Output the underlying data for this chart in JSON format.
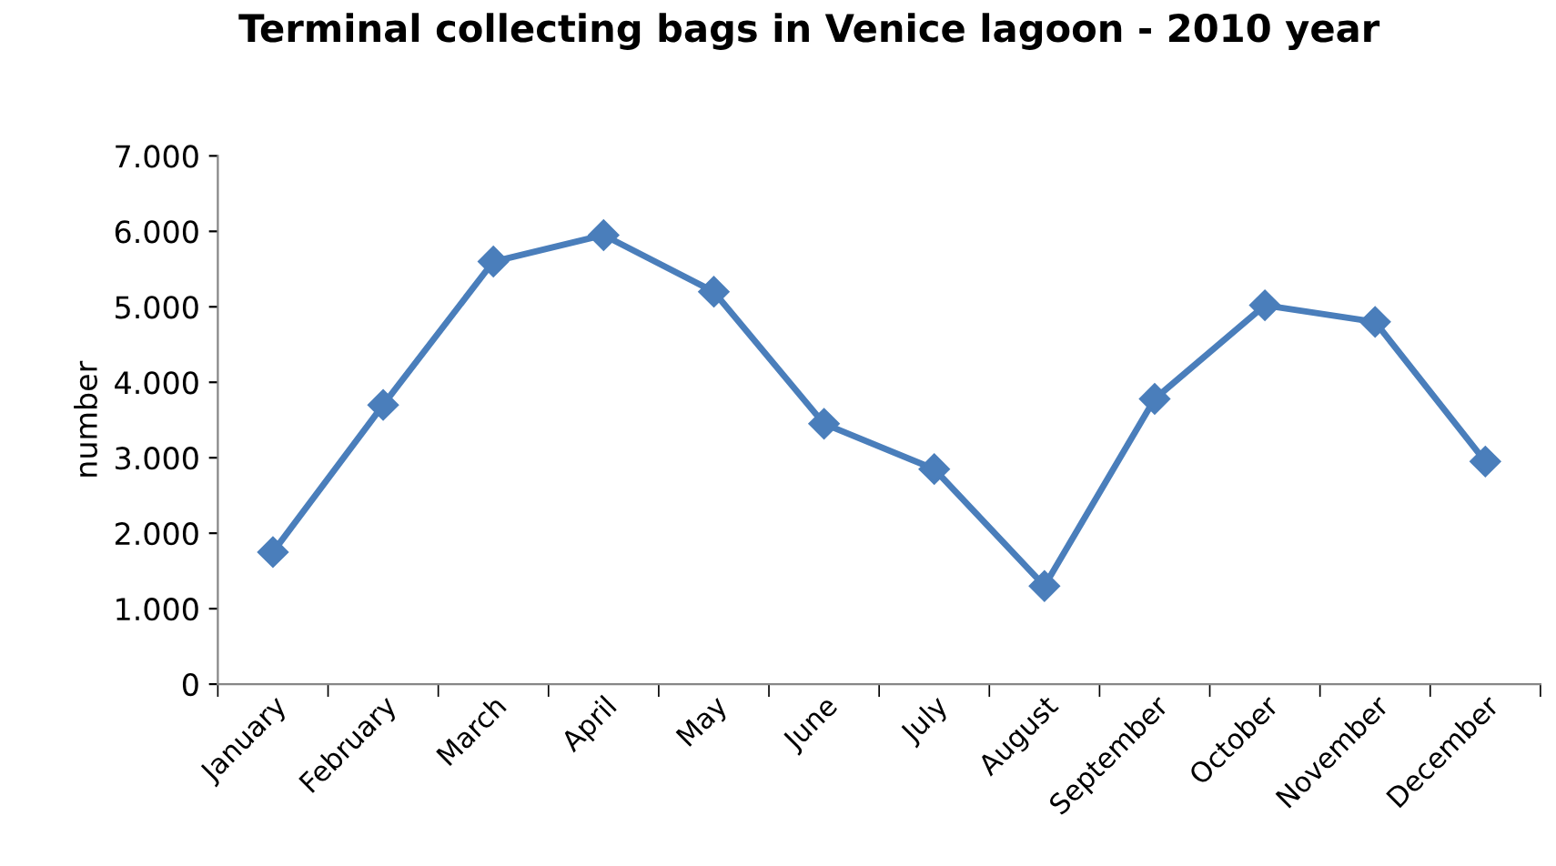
{
  "chart_data": {
    "type": "line",
    "title": "Terminal collecting bags in Venice lagoon - 2010 year",
    "ylabel": "number",
    "categories": [
      "January",
      "February",
      "March",
      "April",
      "May",
      "June",
      "July",
      "August",
      "September",
      "October",
      "November",
      "December"
    ],
    "series": [
      {
        "color": "#4a7ebb",
        "values": [
          1750,
          3700,
          5600,
          5950,
          5200,
          3450,
          2850,
          1300,
          3780,
          5020,
          4800,
          2950
        ]
      }
    ],
    "ylim": [
      0,
      7000
    ],
    "yticks": [
      {
        "value": 0,
        "label": "0"
      },
      {
        "value": 1000,
        "label": "1.000"
      },
      {
        "value": 2000,
        "label": "2.000"
      },
      {
        "value": 3000,
        "label": "3.000"
      },
      {
        "value": 4000,
        "label": "4.000"
      },
      {
        "value": 5000,
        "label": "5.000"
      },
      {
        "value": 6000,
        "label": "6.000"
      },
      {
        "value": 7000,
        "label": "7.000"
      }
    ],
    "grid": false,
    "legend": false,
    "marker": "diamond",
    "line_style": "solid"
  }
}
